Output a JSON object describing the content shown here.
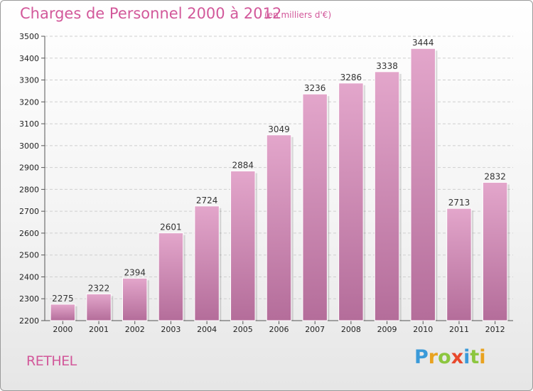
{
  "header": {
    "title": "Charges de Personnel 2000 à 2012",
    "subtitle": "(en milliers d'€)"
  },
  "footer": {
    "commune": "RETHEL",
    "logo_letters": [
      "P",
      "r",
      "o",
      "x",
      "i",
      "t",
      "i"
    ]
  },
  "colors": {
    "title": "#d2589a",
    "bar_top": "#e3a6cb",
    "bar_bottom": "#b46d9a",
    "grid": "#cfcfcf"
  },
  "chart_data": {
    "type": "bar",
    "categories": [
      "2000",
      "2001",
      "2002",
      "2003",
      "2004",
      "2005",
      "2006",
      "2007",
      "2008",
      "2009",
      "2010",
      "2011",
      "2012"
    ],
    "values": [
      2275,
      2322,
      2394,
      2601,
      2724,
      2884,
      3049,
      3236,
      3286,
      3338,
      3444,
      2713,
      2832
    ],
    "title": "Charges de Personnel 2000 à 2012",
    "subtitle": "(en milliers d'€)",
    "xlabel": "",
    "ylabel": "",
    "ylim": [
      2200,
      3500
    ],
    "yticks": [
      2200,
      2300,
      2400,
      2500,
      2600,
      2700,
      2800,
      2900,
      3000,
      3100,
      3200,
      3300,
      3400,
      3500
    ],
    "grid": true,
    "data_labels": true
  }
}
